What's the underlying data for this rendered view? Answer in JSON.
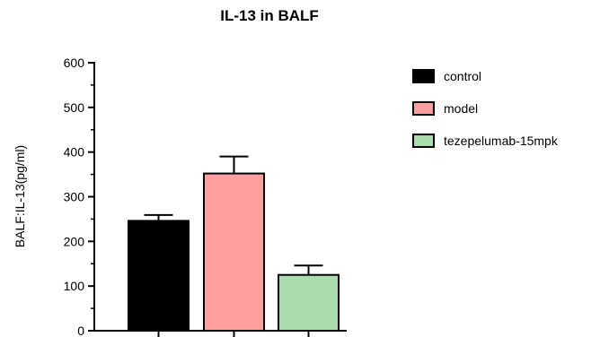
{
  "chart_data": {
    "type": "bar",
    "title": "IL-13 in BALF",
    "xlabel": "",
    "ylabel": "BALF:IL-13(pg/ml)",
    "ylim": [
      0,
      600
    ],
    "yticks": [
      0,
      100,
      200,
      300,
      400,
      500,
      600
    ],
    "grid": false,
    "legend_position": "right",
    "series": [
      {
        "name": "control",
        "value": 246,
        "error": 13,
        "color": "#000000"
      },
      {
        "name": "model",
        "value": 352,
        "error": 38,
        "color": "#ff9f9f"
      },
      {
        "name": "tezepelumab-15mpk",
        "value": 125,
        "error": 21,
        "color": "#a9dcae"
      }
    ]
  }
}
